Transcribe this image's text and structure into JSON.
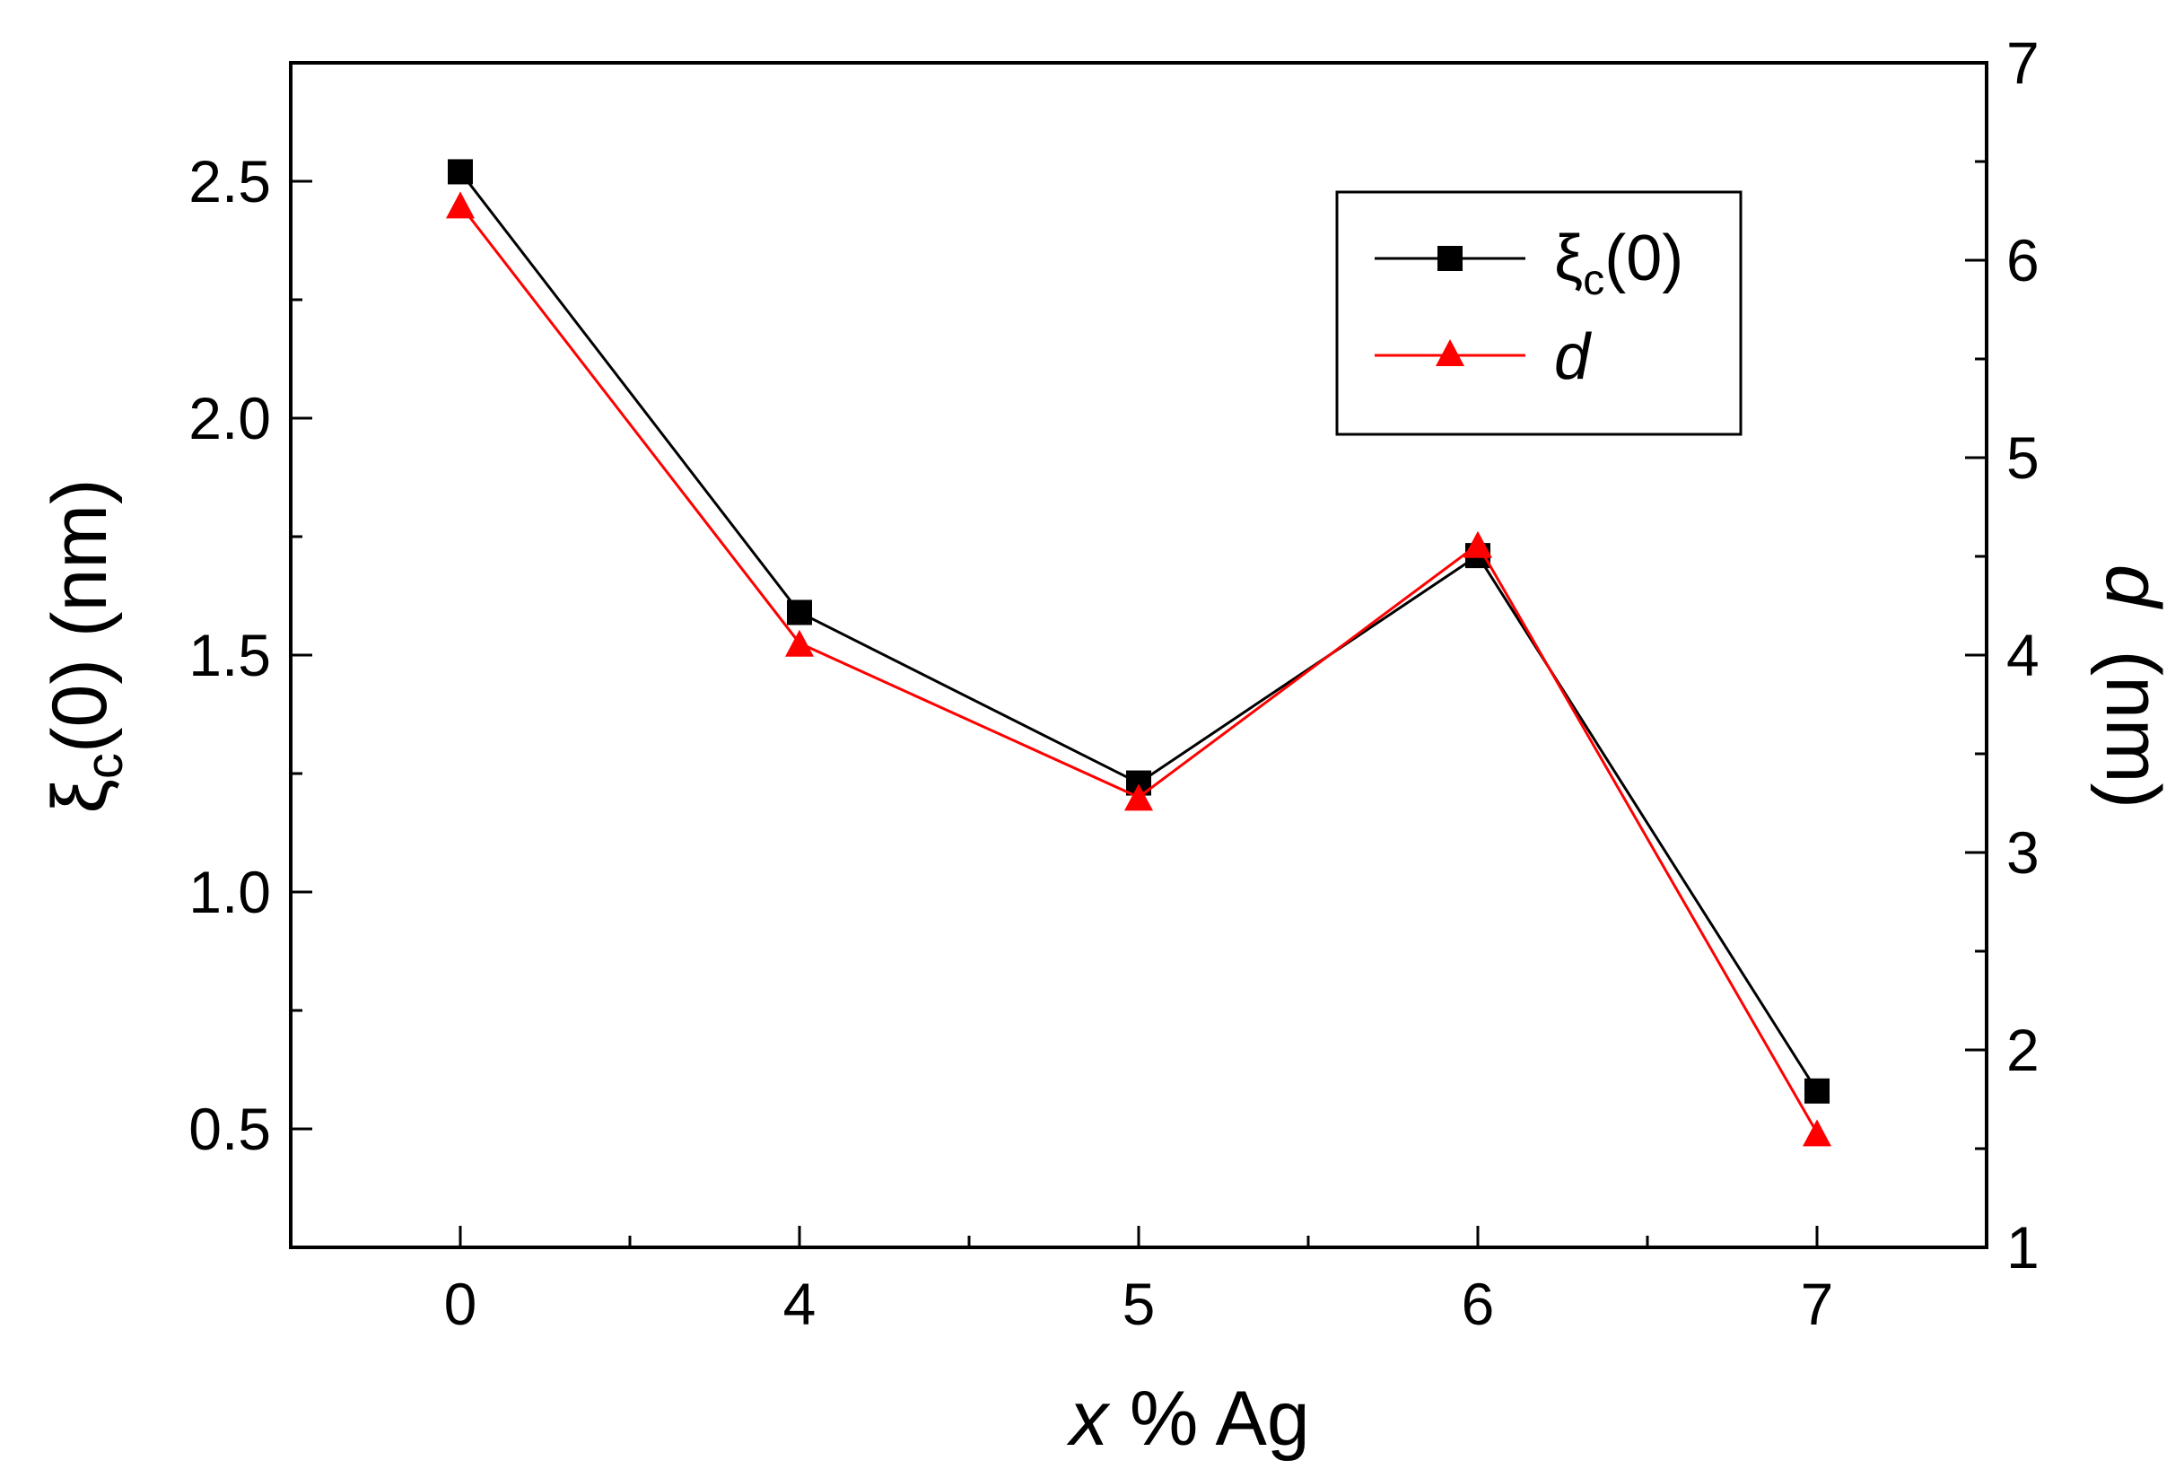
{
  "chart_data": {
    "type": "line",
    "categories": [
      "0",
      "4",
      "5",
      "6",
      "7"
    ],
    "x_category_positions": [
      0,
      1,
      2,
      3,
      4
    ],
    "xlim": [
      -0.5,
      4.5
    ],
    "x_minor_ticks": [
      0.5,
      1.5,
      2.5,
      3.5
    ],
    "xlabel": {
      "italic": "x",
      "rest": " % Ag"
    },
    "ylabel_left": {
      "xi": "ξ",
      "sub": "c",
      "rest": "(0)  (nm)"
    },
    "ylabel_right": {
      "italic": "d",
      "rest": "  (nm)"
    },
    "y_left": {
      "lim": [
        0.25,
        2.75
      ],
      "ticks": [
        0.5,
        1.0,
        1.5,
        2.0,
        2.5
      ],
      "tick_labels": [
        "0.5",
        "1.0",
        "1.5",
        "2.0",
        "2.5"
      ],
      "minor_ticks": [
        0.75,
        1.25,
        1.75,
        2.25
      ]
    },
    "y_right": {
      "lim": [
        1,
        7
      ],
      "ticks": [
        1,
        2,
        3,
        4,
        5,
        6,
        7
      ],
      "tick_labels": [
        "1",
        "2",
        "3",
        "4",
        "5",
        "6",
        "7"
      ],
      "minor_ticks": [
        1.5,
        2.5,
        3.5,
        4.5,
        5.5,
        6.5
      ]
    },
    "series": [
      {
        "name": {
          "xi": "ξ",
          "sub": "c",
          "rest": "(0)"
        },
        "axis": "left",
        "marker": "square",
        "color": "#000000",
        "values": [
          2.52,
          1.59,
          1.23,
          1.71,
          0.58
        ]
      },
      {
        "name": {
          "italic": "d"
        },
        "axis": "right",
        "marker": "triangle",
        "color": "#ff0000",
        "values": [
          6.28,
          4.06,
          3.28,
          4.56,
          1.58
        ]
      }
    ],
    "grid": false,
    "legend": {
      "position": "top-right"
    }
  }
}
